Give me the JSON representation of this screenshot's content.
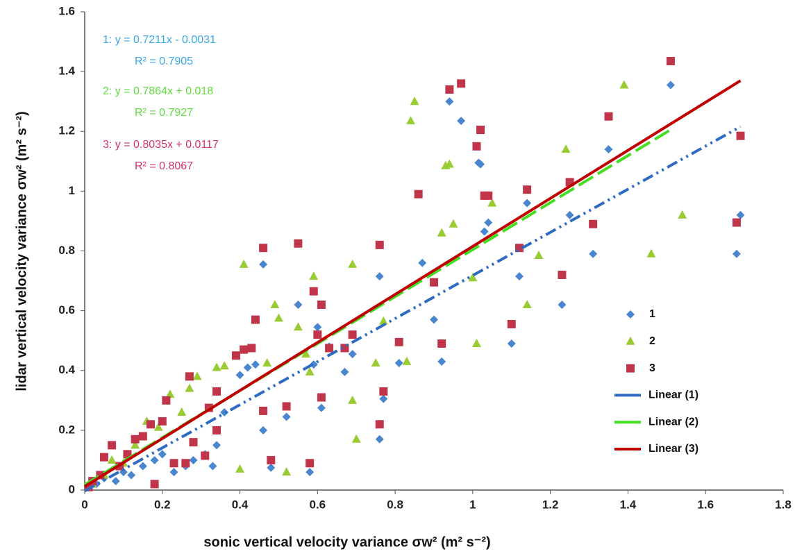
{
  "chart_data": {
    "type": "scatter",
    "xlabel": "sonic vertical velocity variance σw² (m² s⁻²)",
    "ylabel": "lidar vertical velocity variance σw² (m² s⁻²)",
    "xlim": [
      0,
      1.8
    ],
    "ylim": [
      0,
      1.6
    ],
    "xticks": [
      0,
      0.2,
      0.4,
      0.6,
      0.8,
      1,
      1.2,
      1.4,
      1.6,
      1.8
    ],
    "yticks": [
      0,
      0.2,
      0.4,
      0.6,
      0.8,
      1,
      1.2,
      1.4,
      1.6
    ],
    "grid": false,
    "legend": "right",
    "annotations": [
      {
        "text": "1: y = 0.7211x - 0.0031",
        "color": "#3aa8e4"
      },
      {
        "text": "R² = 0.7905",
        "color": "#3aa8e4"
      },
      {
        "text": "2: y = 0.7864x + 0.018",
        "color": "#5edc3c"
      },
      {
        "text": "R² = 0.7927",
        "color": "#5edc3c"
      },
      {
        "text": "3: y = 0.8035x + 0.0117",
        "color": "#d43468"
      },
      {
        "text": "R² = 0.8067",
        "color": "#d43468"
      }
    ],
    "series": [
      {
        "name": "1",
        "type": "scatter",
        "marker": "diamond",
        "color": "#4a86cf",
        "x": [
          1.69,
          1.68,
          1.51,
          1.35,
          1.31,
          1.25,
          1.23,
          1.14,
          1.12,
          1.1,
          1.04,
          1.03,
          1.02,
          1.015,
          0.97,
          0.94,
          0.92,
          0.9,
          0.87,
          0.81,
          0.77,
          0.76,
          0.76,
          0.69,
          0.67,
          0.63,
          0.61,
          0.6,
          0.59,
          0.58,
          0.55,
          0.52,
          0.48,
          0.46,
          0.46,
          0.44,
          0.42,
          0.4,
          0.36,
          0.34,
          0.33,
          0.31,
          0.28,
          0.26,
          0.23,
          0.2,
          0.18,
          0.15,
          0.12,
          0.1,
          0.08,
          0.05,
          0.03,
          0.01
        ],
        "values": [
          0.92,
          0.79,
          1.355,
          1.14,
          0.79,
          0.92,
          0.62,
          0.96,
          0.715,
          0.49,
          0.895,
          0.865,
          1.09,
          1.095,
          1.235,
          1.3,
          0.43,
          0.57,
          0.76,
          0.425,
          0.305,
          0.715,
          0.17,
          0.455,
          0.395,
          0.48,
          0.275,
          0.545,
          0.42,
          0.06,
          0.62,
          0.245,
          0.075,
          0.755,
          0.2,
          0.42,
          0.41,
          0.385,
          0.26,
          0.15,
          0.08,
          0.12,
          0.1,
          0.08,
          0.06,
          0.12,
          0.1,
          0.08,
          0.05,
          0.06,
          0.03,
          0.04,
          0.02,
          0.01
        ]
      },
      {
        "name": "2",
        "type": "scatter",
        "marker": "triangle",
        "color": "#99cc33",
        "x": [
          1.54,
          1.46,
          1.39,
          1.24,
          1.17,
          1.14,
          1.05,
          1.01,
          1.0,
          0.94,
          0.93,
          0.95,
          0.92,
          0.85,
          0.84,
          0.83,
          0.77,
          0.75,
          0.7,
          0.69,
          0.69,
          0.59,
          0.58,
          0.57,
          0.55,
          0.52,
          0.5,
          0.49,
          0.47,
          0.41,
          0.4,
          0.36,
          0.34,
          0.29,
          0.27,
          0.25,
          0.22,
          0.19,
          0.16,
          0.13,
          0.1,
          0.07,
          0.05,
          0.02
        ],
        "values": [
          0.92,
          0.79,
          1.355,
          1.14,
          0.785,
          0.62,
          0.96,
          0.49,
          0.71,
          1.09,
          1.085,
          0.89,
          0.86,
          1.3,
          1.235,
          0.43,
          0.565,
          0.425,
          0.17,
          0.3,
          0.755,
          0.715,
          0.395,
          0.455,
          0.545,
          0.06,
          0.575,
          0.62,
          0.425,
          0.755,
          0.07,
          0.415,
          0.41,
          0.38,
          0.34,
          0.26,
          0.32,
          0.21,
          0.23,
          0.15,
          0.09,
          0.1,
          0.05,
          0.02
        ]
      },
      {
        "name": "3",
        "type": "scatter",
        "marker": "square",
        "color": "#c0354a",
        "x": [
          1.69,
          1.68,
          1.51,
          1.35,
          1.31,
          1.25,
          1.23,
          1.14,
          1.12,
          1.1,
          1.04,
          1.03,
          1.02,
          1.01,
          0.97,
          0.94,
          0.92,
          0.9,
          0.86,
          0.81,
          0.77,
          0.76,
          0.76,
          0.69,
          0.67,
          0.63,
          0.61,
          0.61,
          0.6,
          0.59,
          0.58,
          0.55,
          0.52,
          0.48,
          0.46,
          0.46,
          0.44,
          0.43,
          0.41,
          0.39,
          0.34,
          0.34,
          0.32,
          0.31,
          0.28,
          0.27,
          0.26,
          0.23,
          0.21,
          0.2,
          0.18,
          0.17,
          0.15,
          0.13,
          0.11,
          0.09,
          0.07,
          0.05,
          0.04,
          0.02,
          0.01
        ],
        "values": [
          1.185,
          0.895,
          1.435,
          1.25,
          0.89,
          1.03,
          0.72,
          1.005,
          0.81,
          0.555,
          0.985,
          0.985,
          1.205,
          1.15,
          1.36,
          1.34,
          0.49,
          0.695,
          0.99,
          0.495,
          0.33,
          0.82,
          0.22,
          0.52,
          0.475,
          0.475,
          0.62,
          0.31,
          0.52,
          0.665,
          0.09,
          0.825,
          0.28,
          0.1,
          0.81,
          0.265,
          0.57,
          0.475,
          0.47,
          0.45,
          0.33,
          0.2,
          0.275,
          0.115,
          0.16,
          0.38,
          0.09,
          0.09,
          0.3,
          0.23,
          0.02,
          0.22,
          0.18,
          0.17,
          0.12,
          0.08,
          0.15,
          0.11,
          0.05,
          0.03,
          0.01
        ]
      },
      {
        "name": "Linear (1)",
        "type": "line",
        "dash": "dashdot",
        "color": "#2e6cc4",
        "x": [
          0,
          1.69
        ],
        "values": [
          -0.0031,
          1.2156
        ]
      },
      {
        "name": "Linear (2)",
        "type": "line",
        "dash": "longdash",
        "color": "#44dd22",
        "x": [
          0,
          1.51
        ],
        "values": [
          0.018,
          1.2055
        ]
      },
      {
        "name": "Linear (3)",
        "type": "line",
        "dash": "solid",
        "color": "#c00000",
        "x": [
          0,
          1.69
        ],
        "values": [
          0.0117,
          1.3696
        ]
      }
    ]
  }
}
